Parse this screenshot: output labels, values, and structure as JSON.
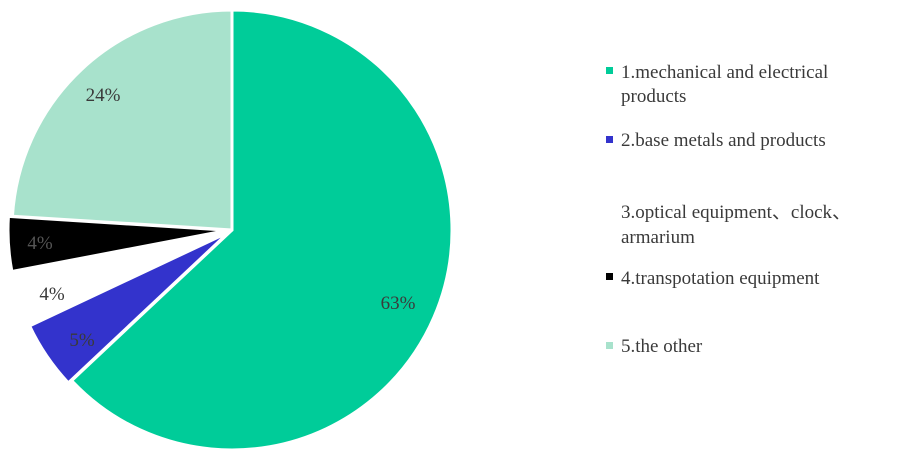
{
  "chart_data": {
    "type": "pie",
    "title": "",
    "legend_position": "right",
    "slices": [
      {
        "category": "1.mechanical and electrical products",
        "value": 63,
        "label": "63%",
        "color": "#00cc99",
        "label_color": "#3a3a3a"
      },
      {
        "category": "2.base metals and products",
        "value": 5,
        "label": "5%",
        "color": "#3333cc",
        "label_color": "#3a3a3a"
      },
      {
        "category": "3.optical equipment、clock、armarium",
        "value": 4,
        "label": "4%",
        "color": "#ffffff",
        "label_color": "#3a3a3a"
      },
      {
        "category": "4.transpotation equipment",
        "value": 4,
        "label": "4%",
        "color": "#000000",
        "label_color": "#555555"
      },
      {
        "category": "5.the other",
        "value": 24,
        "label": "24%",
        "color": "#a8e2cc",
        "label_color": "#3a3a3a"
      }
    ]
  }
}
